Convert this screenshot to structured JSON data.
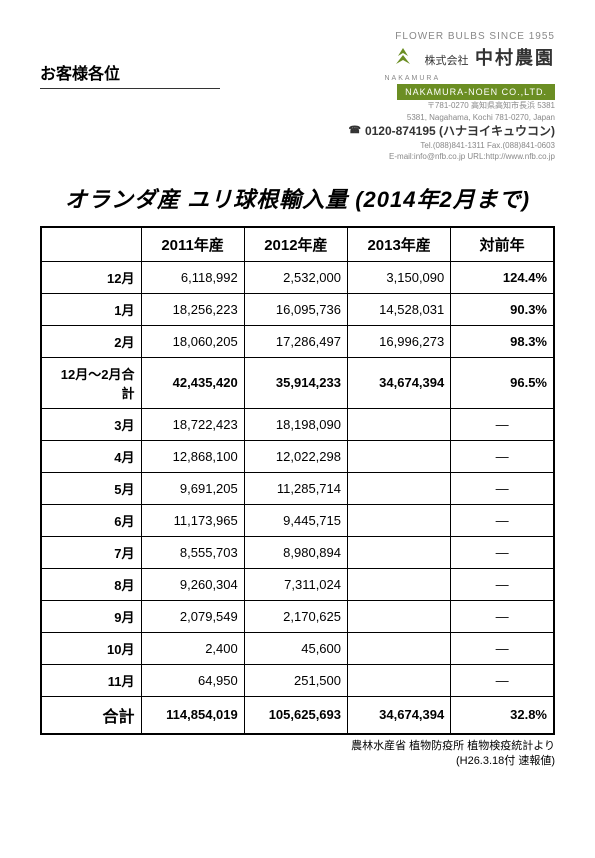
{
  "header": {
    "customer": "お客様各位",
    "tagline": "FLOWER BULBS SINCE 1955",
    "kabushiki": "株式会社",
    "company_jp": "中村農園",
    "company_en": "NAKAMURA-NOEN CO.,LTD.",
    "addr_jp": "〒781-0270 高知県高知市長浜 5381",
    "addr_en": "5381, Nagahama, Kochi 781-0270, Japan",
    "freedial_icon": "☎",
    "freedial": "0120-874195 (ハナヨイキュウコン)",
    "tel": "Tel.(088)841-1311 Fax.(088)841-0603",
    "email_url": "E-mail:info@nfb.co.jp URL:http://www.nfb.co.jp",
    "nakamura_label": "NAKAMURA"
  },
  "title": "オランダ産 ユリ球根輸入量 (2014年2月まで)",
  "columns": [
    "",
    "2011年産",
    "2012年産",
    "2013年産",
    "対前年"
  ],
  "rows": [
    {
      "month": "12月",
      "y11": "6,118,992",
      "y12": "2,532,000",
      "y13": "3,150,090",
      "pct": "124.4%"
    },
    {
      "month": "1月",
      "y11": "18,256,223",
      "y12": "16,095,736",
      "y13": "14,528,031",
      "pct": "90.3%"
    },
    {
      "month": "2月",
      "y11": "18,060,205",
      "y12": "17,286,497",
      "y13": "16,996,273",
      "pct": "98.3%"
    },
    {
      "month": "12月～2月合計",
      "y11": "42,435,420",
      "y12": "35,914,233",
      "y13": "34,674,394",
      "pct": "96.5%"
    },
    {
      "month": "3月",
      "y11": "18,722,423",
      "y12": "18,198,090",
      "y13": "",
      "pct": "―"
    },
    {
      "month": "4月",
      "y11": "12,868,100",
      "y12": "12,022,298",
      "y13": "",
      "pct": "―"
    },
    {
      "month": "5月",
      "y11": "9,691,205",
      "y12": "11,285,714",
      "y13": "",
      "pct": "―"
    },
    {
      "month": "6月",
      "y11": "11,173,965",
      "y12": "9,445,715",
      "y13": "",
      "pct": "―"
    },
    {
      "month": "7月",
      "y11": "8,555,703",
      "y12": "8,980,894",
      "y13": "",
      "pct": "―"
    },
    {
      "month": "8月",
      "y11": "9,260,304",
      "y12": "7,311,024",
      "y13": "",
      "pct": "―"
    },
    {
      "month": "9月",
      "y11": "2,079,549",
      "y12": "2,170,625",
      "y13": "",
      "pct": "―"
    },
    {
      "month": "10月",
      "y11": "2,400",
      "y12": "45,600",
      "y13": "",
      "pct": "―"
    },
    {
      "month": "11月",
      "y11": "64,950",
      "y12": "251,500",
      "y13": "",
      "pct": "―"
    }
  ],
  "total": {
    "month": "合計",
    "y11": "114,854,019",
    "y12": "105,625,693",
    "y13": "34,674,394",
    "pct": "32.8%"
  },
  "source_line1": "農林水産省 植物防疫所 植物検疫統計より",
  "source_line2": "(H26.3.18付 速報値)",
  "colors": {
    "accent": "#6b8e23",
    "text_muted": "#888888",
    "border": "#000000"
  }
}
